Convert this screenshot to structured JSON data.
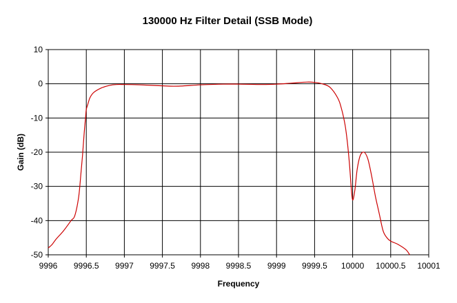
{
  "chart_data": {
    "type": "line",
    "title": "130000 Hz Filter Detail (SSB Mode)",
    "xlabel": "Frequency",
    "ylabel": "Gain (dB)",
    "xlim": [
      9996,
      10001
    ],
    "ylim": [
      -50,
      10
    ],
    "x_ticks": [
      "9996",
      "9996.5",
      "9997",
      "9997.5",
      "9998",
      "9998.5",
      "9999",
      "9999.5",
      "10000",
      "10000.5",
      "10001"
    ],
    "y_ticks": [
      "10",
      "0",
      "-10",
      "-20",
      "-30",
      "-40",
      "-50"
    ],
    "grid": true,
    "legend": "none",
    "series_color": "#cc0000",
    "series": [
      {
        "x": [
          9996,
          9996.05,
          9996.1,
          9996.2,
          9996.3,
          9996.35,
          9996.4,
          9996.43,
          9996.45,
          9996.47,
          9996.49,
          9996.5,
          9996.52,
          9996.55,
          9996.6,
          9996.7,
          9996.8,
          9996.9,
          9997,
          9997.2,
          9997.5,
          9997.7,
          9998,
          9998.3,
          9998.5,
          9998.8,
          9999,
          9999.2,
          9999.4,
          9999.5,
          9999.6,
          9999.7,
          9999.8,
          9999.85,
          9999.9,
          9999.93,
          9999.96,
          9999.98,
          10000,
          10000.03,
          10000.06,
          10000.1,
          10000.15,
          10000.2,
          10000.25,
          10000.3,
          10000.35,
          10000.4,
          10000.45,
          10000.5,
          10000.6,
          10000.7,
          10000.75
        ],
        "y": [
          -48,
          -47,
          -45.5,
          -43,
          -40,
          -38.5,
          -33,
          -26,
          -21,
          -15,
          -10,
          -7.5,
          -6,
          -4,
          -2.5,
          -1.2,
          -0.5,
          -0.2,
          -0.2,
          -0.3,
          -0.6,
          -0.7,
          -0.3,
          -0.1,
          -0.1,
          -0.2,
          -0.1,
          0.2,
          0.5,
          0.4,
          0,
          -1,
          -4,
          -7,
          -12,
          -17,
          -24,
          -30,
          -34,
          -31,
          -25,
          -21,
          -20,
          -22,
          -27,
          -33,
          -38,
          -43,
          -45,
          -46,
          -47,
          -48.5,
          -50
        ]
      }
    ]
  }
}
